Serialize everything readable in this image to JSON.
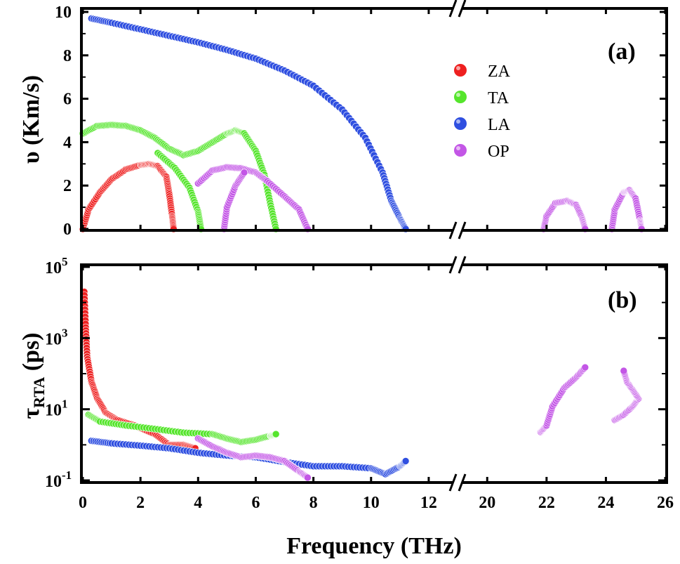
{
  "colors": {
    "ZA": "#ee2020",
    "TA": "#55e52c",
    "LA": "#2f4fe0",
    "OP": "#c356e6"
  },
  "chart_data": [
    {
      "panel": "a",
      "type": "scatter",
      "panel_label": "(a)",
      "ylabel": "υ (Km/s)",
      "ylim": [
        0,
        10
      ],
      "yticks": [
        "0",
        "2",
        "4",
        "6",
        "8",
        "10"
      ],
      "xticks_left": [
        "0",
        "2",
        "4",
        "6",
        "8",
        "10",
        "12"
      ],
      "xticks_right": [
        "20",
        "22",
        "24",
        "26"
      ],
      "x_break": [
        13,
        19
      ],
      "legend": {
        "position": "top-right",
        "entries": [
          "ZA",
          "TA",
          "LA",
          "OP"
        ]
      },
      "series": [
        {
          "name": "ZA",
          "points": [
            [
              0,
              0
            ],
            [
              0.2,
              0.9
            ],
            [
              0.6,
              1.7
            ],
            [
              1,
              2.3
            ],
            [
              1.5,
              2.75
            ],
            [
              2,
              2.95
            ],
            [
              2.3,
              3.0
            ],
            [
              2.6,
              2.9
            ],
            [
              2.9,
              2.4
            ],
            [
              3.0,
              1.6
            ],
            [
              3.1,
              0.6
            ],
            [
              3.15,
              0
            ]
          ]
        },
        {
          "name": "TA",
          "points": [
            [
              0,
              4.4
            ],
            [
              0.5,
              4.75
            ],
            [
              1,
              4.8
            ],
            [
              1.5,
              4.75
            ],
            [
              2,
              4.55
            ],
            [
              2.5,
              4.2
            ],
            [
              3,
              3.7
            ],
            [
              3.5,
              3.4
            ],
            [
              4,
              3.6
            ],
            [
              4.5,
              4.0
            ],
            [
              5,
              4.4
            ],
            [
              5.3,
              4.55
            ],
            [
              5.6,
              4.4
            ],
            [
              6,
              3.6
            ],
            [
              6.3,
              2.5
            ],
            [
              6.5,
              1.2
            ],
            [
              6.7,
              0
            ]
          ]
        },
        {
          "name": "TA",
          "points": [
            [
              2.6,
              3.5
            ],
            [
              3.2,
              2.8
            ],
            [
              3.7,
              1.9
            ],
            [
              4.0,
              0.8
            ],
            [
              4.1,
              0
            ]
          ]
        },
        {
          "name": "LA",
          "points": [
            [
              0.3,
              9.7
            ],
            [
              1,
              9.5
            ],
            [
              2,
              9.2
            ],
            [
              3,
              8.9
            ],
            [
              4,
              8.6
            ],
            [
              5,
              8.25
            ],
            [
              6,
              7.85
            ],
            [
              7,
              7.3
            ],
            [
              8,
              6.6
            ],
            [
              9,
              5.5
            ],
            [
              9.8,
              4.2
            ],
            [
              10.4,
              2.6
            ],
            [
              10.7,
              1.3
            ],
            [
              11.0,
              0.5
            ],
            [
              11.2,
              0
            ]
          ]
        },
        {
          "name": "OP",
          "points": [
            [
              4,
              2.1
            ],
            [
              4.5,
              2.7
            ],
            [
              5,
              2.85
            ],
            [
              5.5,
              2.8
            ],
            [
              6,
              2.6
            ],
            [
              6.4,
              2.2
            ],
            [
              7.0,
              1.5
            ],
            [
              7.5,
              0.9
            ],
            [
              7.8,
              0
            ]
          ]
        },
        {
          "name": "OP",
          "points": [
            [
              4.9,
              0
            ],
            [
              5.0,
              1.0
            ],
            [
              5.3,
              2.0
            ],
            [
              5.6,
              2.6
            ]
          ]
        },
        {
          "name": "OP",
          "points": [
            [
              21.9,
              0
            ],
            [
              22.0,
              0.6
            ],
            [
              22.3,
              1.2
            ],
            [
              22.7,
              1.3
            ],
            [
              23.0,
              1.1
            ],
            [
              23.2,
              0.5
            ],
            [
              23.3,
              0
            ]
          ]
        },
        {
          "name": "OP",
          "points": [
            [
              24.2,
              0
            ],
            [
              24.3,
              0.9
            ],
            [
              24.6,
              1.7
            ],
            [
              24.8,
              1.8
            ],
            [
              25.0,
              1.4
            ],
            [
              25.15,
              0.4
            ],
            [
              25.2,
              0
            ]
          ]
        }
      ]
    },
    {
      "panel": "b",
      "type": "scatter",
      "panel_label": "(b)",
      "ylabel": "τRTA (ps)",
      "yscale": "log",
      "ylim": [
        0.1,
        100000
      ],
      "yticks": [
        {
          "value": 0.1,
          "base": "10",
          "exp": "-1"
        },
        {
          "value": 10,
          "base": "10",
          "exp": "1"
        },
        {
          "value": 1000,
          "base": "10",
          "exp": "3"
        },
        {
          "value": 100000,
          "base": "10",
          "exp": "5"
        }
      ],
      "xlabel": "Frequency (THz)",
      "xticks_left": [
        "0",
        "2",
        "4",
        "6",
        "8",
        "10",
        "12"
      ],
      "xticks_right": [
        "20",
        "22",
        "24",
        "26"
      ],
      "x_break": [
        13,
        19
      ],
      "series": [
        {
          "name": "ZA",
          "points": [
            [
              0.05,
              20000
            ],
            [
              0.1,
              2000
            ],
            [
              0.15,
              300
            ],
            [
              0.3,
              60
            ],
            [
              0.5,
              20
            ],
            [
              0.8,
              8
            ],
            [
              1.2,
              5
            ],
            [
              1.8,
              3.5
            ],
            [
              2.5,
              2
            ],
            [
              3,
              1
            ],
            [
              3.5,
              1
            ],
            [
              3.9,
              0.8
            ]
          ]
        },
        {
          "name": "TA",
          "points": [
            [
              0.2,
              7
            ],
            [
              0.6,
              4.5
            ],
            [
              1.5,
              3.5
            ],
            [
              2.5,
              2.8
            ],
            [
              3.5,
              2.2
            ],
            [
              4.5,
              2
            ],
            [
              5.0,
              1.5
            ],
            [
              5.5,
              1.2
            ],
            [
              6,
              1.4
            ],
            [
              6.5,
              1.8
            ],
            [
              6.7,
              2
            ]
          ]
        },
        {
          "name": "LA",
          "points": [
            [
              0.3,
              1.3
            ],
            [
              1,
              1.1
            ],
            [
              2,
              0.95
            ],
            [
              3,
              0.8
            ],
            [
              4,
              0.6
            ],
            [
              5,
              0.5
            ],
            [
              6,
              0.45
            ],
            [
              7,
              0.33
            ],
            [
              8,
              0.25
            ],
            [
              9,
              0.25
            ],
            [
              10,
              0.22
            ],
            [
              10.5,
              0.15
            ],
            [
              11,
              0.25
            ],
            [
              11.2,
              0.35
            ]
          ]
        },
        {
          "name": "OP",
          "points": [
            [
              4,
              1.5
            ],
            [
              4.5,
              0.9
            ],
            [
              5,
              0.6
            ],
            [
              5.5,
              0.45
            ],
            [
              6,
              0.5
            ],
            [
              6.5,
              0.45
            ],
            [
              7,
              0.35
            ],
            [
              7.5,
              0.18
            ],
            [
              7.8,
              0.12
            ]
          ]
        },
        {
          "name": "OP",
          "points": [
            [
              21.8,
              2.3
            ],
            [
              22.0,
              3.5
            ],
            [
              22.2,
              12
            ],
            [
              22.6,
              40
            ],
            [
              23.0,
              80
            ],
            [
              23.3,
              150
            ]
          ]
        },
        {
          "name": "OP",
          "points": [
            [
              24.3,
              5
            ],
            [
              24.6,
              7
            ],
            [
              24.9,
              12
            ],
            [
              25.1,
              20
            ],
            [
              24.9,
              35
            ],
            [
              24.7,
              60
            ],
            [
              24.6,
              120
            ]
          ]
        }
      ]
    }
  ]
}
